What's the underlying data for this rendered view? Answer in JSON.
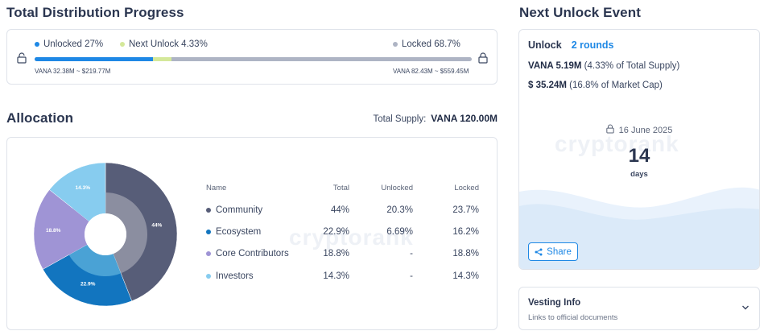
{
  "progress": {
    "title": "Total Distribution Progress",
    "unlocked_label": "Unlocked 27%",
    "next_label": "Next Unlock 4.33%",
    "locked_label": "Locked 68.7%",
    "unlocked_sub": "VANA 32.38M ~ $219.77M",
    "locked_sub": "VANA 82.43M ~ $559.45M",
    "unlocked_pct": 27,
    "next_pct": 4.33,
    "locked_pct": 68.7,
    "colors": {
      "unlocked": "#1e88e5",
      "next": "#d4e89a",
      "locked": "#aeb4c4"
    }
  },
  "allocation": {
    "title": "Allocation",
    "total_supply_label": "Total Supply:",
    "total_supply_value": "VANA 120.00M",
    "watermark": "cryptorank",
    "columns": [
      "Name",
      "Total",
      "Unlocked",
      "Locked"
    ],
    "rows": [
      {
        "name": "Community",
        "total": "44%",
        "unlocked": "20.3%",
        "locked": "23.7%",
        "color": "#575d78"
      },
      {
        "name": "Ecosystem",
        "total": "22.9%",
        "unlocked": "6.69%",
        "locked": "16.2%",
        "color": "#1275bf"
      },
      {
        "name": "Core Contributors",
        "total": "18.8%",
        "unlocked": "-",
        "locked": "18.8%",
        "color": "#9f94d5"
      },
      {
        "name": "Investors",
        "total": "14.3%",
        "unlocked": "-",
        "locked": "14.3%",
        "color": "#87ccef"
      }
    ]
  },
  "chart_data": {
    "type": "pie",
    "categories": [
      "Community",
      "Ecosystem",
      "Core Contributors",
      "Investors"
    ],
    "values": [
      44,
      22.9,
      18.8,
      14.3
    ],
    "unlocked": [
      20.3,
      6.69,
      0,
      0
    ],
    "locked": [
      23.7,
      16.2,
      18.8,
      14.3
    ],
    "slice_labels": [
      "44%",
      "22.9%",
      "18.8%",
      "14.3%"
    ],
    "colors": [
      "#575d78",
      "#1275bf",
      "#9f94d5",
      "#87ccef"
    ],
    "inner_colors": [
      "#8b8ea0",
      "#4aa2d5",
      "#9f94d5",
      "#87ccef"
    ]
  },
  "next_unlock": {
    "title": "Next Unlock Event",
    "unlock_label": "Unlock",
    "rounds": "2 rounds",
    "amount_bold": "VANA 5.19M",
    "amount_rest": "(4.33% of Total Supply)",
    "value_bold": "$ 35.24M",
    "value_rest": "(16.8% of Market Cap)",
    "date": "16 June 2025",
    "days": "14",
    "days_label": "days",
    "watermark": "cryptorank",
    "share_label": "Share"
  },
  "vesting": {
    "title": "Vesting Info",
    "subtitle": "Links to official documents"
  }
}
